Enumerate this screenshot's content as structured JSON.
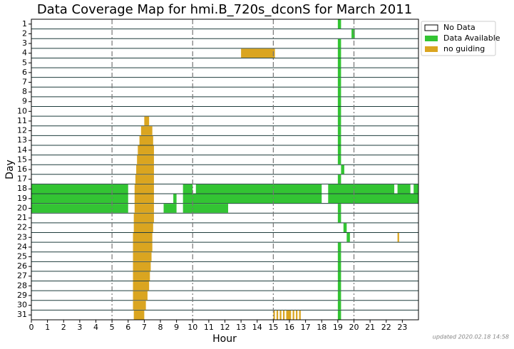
{
  "chart_data": {
    "type": "coverage",
    "title": "Data Coverage Map for hmi.B_720s_dconS for March 2011",
    "x_label": "Hour",
    "y_label": "Day",
    "footnote": "updated 2020.02.18 14:58",
    "categories": [
      1,
      2,
      3,
      4,
      5,
      6,
      7,
      8,
      9,
      10,
      11,
      12,
      13,
      14,
      15,
      16,
      17,
      18,
      19,
      20,
      21,
      22,
      23,
      24,
      25,
      26,
      27,
      28,
      29,
      30,
      31
    ],
    "xlim": [
      0,
      24
    ],
    "xticks": [
      0,
      1,
      2,
      3,
      4,
      5,
      6,
      7,
      8,
      9,
      10,
      11,
      12,
      13,
      14,
      15,
      16,
      17,
      18,
      19,
      20,
      21,
      22,
      23
    ],
    "vlines": [
      5,
      10,
      15,
      20
    ],
    "legend_position": "outside upper right",
    "legend_empty": "No Data",
    "series": [
      {
        "name": "Data Available",
        "color": "#33c433",
        "intervals": [
          [
            1,
            19.0,
            19.2
          ],
          [
            2,
            19.85,
            20.05
          ],
          [
            3,
            19.0,
            19.2
          ],
          [
            4,
            19.0,
            19.2
          ],
          [
            5,
            19.0,
            19.2
          ],
          [
            6,
            19.0,
            19.2
          ],
          [
            7,
            19.0,
            19.2
          ],
          [
            8,
            19.0,
            19.2
          ],
          [
            9,
            19.0,
            19.2
          ],
          [
            10,
            19.0,
            19.2
          ],
          [
            11,
            19.0,
            19.2
          ],
          [
            12,
            19.0,
            19.2
          ],
          [
            13,
            19.0,
            19.2
          ],
          [
            14,
            19.0,
            19.2
          ],
          [
            15,
            19.0,
            19.2
          ],
          [
            16,
            19.2,
            19.4
          ],
          [
            17,
            19.0,
            19.2
          ],
          [
            18,
            0,
            6.0
          ],
          [
            18,
            9.4,
            10.0
          ],
          [
            18,
            10.2,
            18.0
          ],
          [
            18,
            18.4,
            22.5
          ],
          [
            18,
            22.7,
            23.5
          ],
          [
            18,
            23.7,
            24
          ],
          [
            19,
            0,
            6.0
          ],
          [
            19,
            8.8,
            9.0
          ],
          [
            19,
            9.4,
            18.0
          ],
          [
            19,
            18.4,
            24
          ],
          [
            20,
            0,
            6.0
          ],
          [
            20,
            8.2,
            9.0
          ],
          [
            20,
            9.4,
            12.2
          ],
          [
            20,
            19.0,
            19.2
          ],
          [
            21,
            19.0,
            19.2
          ],
          [
            22,
            19.35,
            19.55
          ],
          [
            23,
            19.55,
            19.75
          ],
          [
            24,
            19.0,
            19.2
          ],
          [
            25,
            19.0,
            19.2
          ],
          [
            26,
            19.0,
            19.2
          ],
          [
            27,
            19.0,
            19.2
          ],
          [
            28,
            19.0,
            19.2
          ],
          [
            29,
            19.0,
            19.2
          ],
          [
            30,
            19.0,
            19.2
          ],
          [
            31,
            19.0,
            19.2
          ]
        ]
      },
      {
        "name": "no guiding",
        "color": "#daa520",
        "intervals": [
          [
            4,
            13.0,
            15.1
          ],
          [
            11,
            7.0,
            7.3
          ],
          [
            12,
            6.8,
            7.5
          ],
          [
            13,
            6.7,
            7.55
          ],
          [
            14,
            6.6,
            7.6
          ],
          [
            15,
            6.55,
            7.6
          ],
          [
            16,
            6.5,
            7.6
          ],
          [
            17,
            6.45,
            7.6
          ],
          [
            18,
            6.4,
            7.6
          ],
          [
            19,
            6.4,
            7.6
          ],
          [
            20,
            6.4,
            7.6
          ],
          [
            21,
            6.35,
            7.6
          ],
          [
            22,
            6.35,
            7.55
          ],
          [
            23,
            6.3,
            7.5
          ],
          [
            24,
            6.3,
            7.5
          ],
          [
            25,
            6.3,
            7.45
          ],
          [
            26,
            6.3,
            7.4
          ],
          [
            27,
            6.3,
            7.35
          ],
          [
            28,
            6.3,
            7.3
          ],
          [
            29,
            6.3,
            7.2
          ],
          [
            30,
            6.3,
            7.1
          ],
          [
            31,
            6.35,
            7.0
          ],
          [
            23,
            22.7,
            22.8
          ],
          [
            31,
            15.0,
            15.1
          ],
          [
            31,
            15.2,
            15.3
          ],
          [
            31,
            15.4,
            15.5
          ],
          [
            31,
            15.6,
            15.7
          ],
          [
            31,
            15.8,
            16.1
          ],
          [
            31,
            16.2,
            16.3
          ],
          [
            31,
            16.4,
            16.5
          ],
          [
            31,
            16.6,
            16.7
          ]
        ]
      }
    ]
  }
}
